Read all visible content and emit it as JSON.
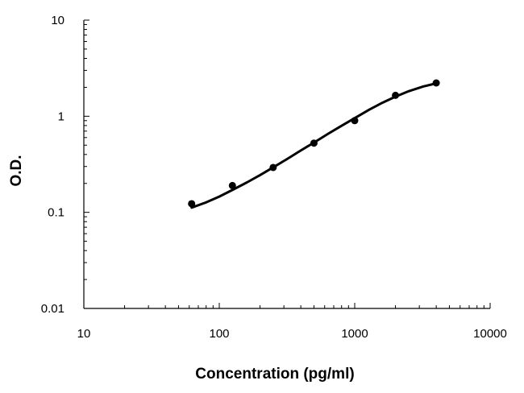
{
  "chart_data": {
    "type": "scatter",
    "xlabel": "Concentration (pg/ml)",
    "ylabel": "O.D.",
    "xscale": "log",
    "yscale": "log",
    "xlim": [
      10,
      10000
    ],
    "ylim": [
      0.01,
      10
    ],
    "xticks": [
      "10",
      "100",
      "1000",
      "10000"
    ],
    "yticks": [
      "0.01",
      "0.1",
      "1",
      "10"
    ],
    "grid": false,
    "legend": "none",
    "series": [
      {
        "points": {
          "x": [
            62.5,
            125,
            250,
            500,
            1000,
            2000,
            4000
          ],
          "y": [
            0.123,
            0.19,
            0.293,
            0.525,
            0.9,
            1.65,
            2.22
          ]
        },
        "fit_curve": {
          "x": [
            62.5,
            80,
            100,
            125,
            160,
            200,
            250,
            320,
            400,
            500,
            640,
            800,
            1000,
            1280,
            1600,
            2000,
            2500,
            3200,
            4000
          ],
          "y": [
            0.112,
            0.127,
            0.146,
            0.171,
            0.205,
            0.244,
            0.294,
            0.362,
            0.44,
            0.531,
            0.659,
            0.796,
            0.955,
            1.17,
            1.38,
            1.6,
            1.82,
            2.04,
            2.2
          ]
        }
      }
    ],
    "colors": {
      "marker": "#000000",
      "curve": "#000000",
      "axis": "#000000"
    }
  }
}
